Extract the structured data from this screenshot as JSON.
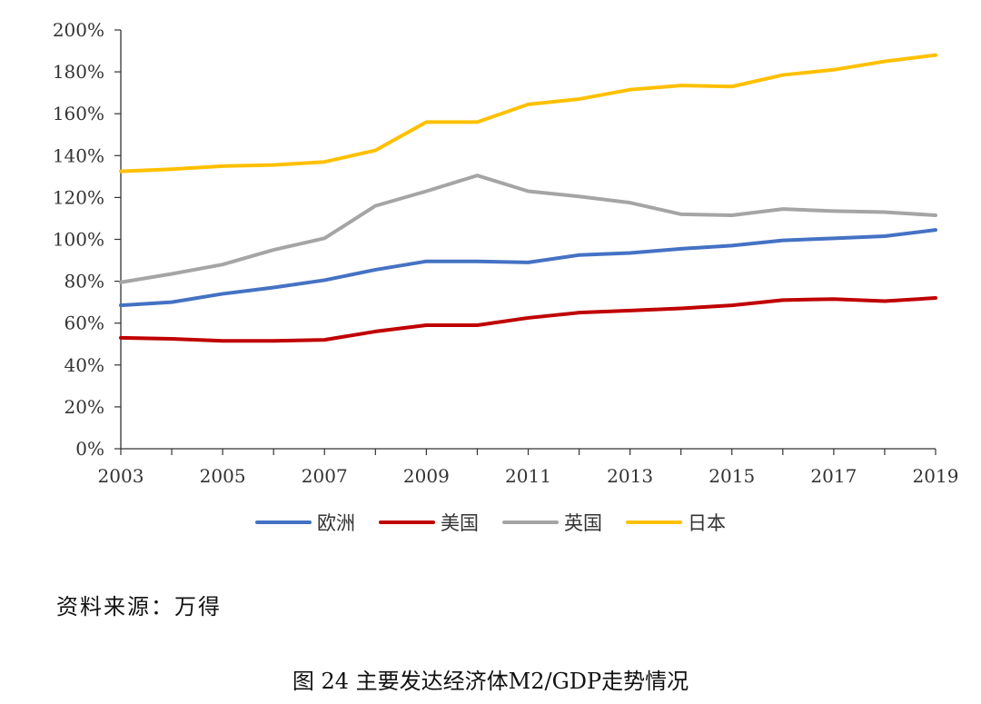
{
  "chart_data": {
    "type": "line",
    "title": "",
    "xlabel": "",
    "ylabel": "",
    "x": [
      2003,
      2004,
      2005,
      2006,
      2007,
      2008,
      2009,
      2010,
      2011,
      2012,
      2013,
      2014,
      2015,
      2016,
      2017,
      2018,
      2019
    ],
    "x_tick_labels": [
      "2003",
      "2005",
      "2007",
      "2009",
      "2011",
      "2013",
      "2015",
      "2017",
      "2019"
    ],
    "y_tick_labels": [
      "0%",
      "20%",
      "40%",
      "60%",
      "80%",
      "100%",
      "120%",
      "140%",
      "160%",
      "180%",
      "200%"
    ],
    "ylim": [
      0,
      200
    ],
    "grid": false,
    "legend_position": "bottom",
    "series": [
      {
        "name": "欧洲",
        "color": "#4472C4",
        "values": [
          68.5,
          70,
          74,
          77,
          80.5,
          85.5,
          89.5,
          89.5,
          89,
          92.5,
          93.5,
          95.5,
          97,
          99.5,
          100.5,
          101.5,
          104.5
        ]
      },
      {
        "name": "美国",
        "color": "#C00000",
        "values": [
          53,
          52.5,
          51.5,
          51.5,
          52,
          56,
          59,
          59,
          62.5,
          65,
          66,
          67,
          68.5,
          71,
          71.5,
          70.5,
          72
        ]
      },
      {
        "name": "英国",
        "color": "#A5A5A5",
        "values": [
          79.5,
          83.5,
          88,
          95,
          100.5,
          116,
          123,
          130.5,
          123,
          120.5,
          117.5,
          112,
          111.5,
          114.5,
          113.5,
          113,
          111.5
        ]
      },
      {
        "name": "日本",
        "color": "#FFC000",
        "values": [
          132.5,
          133.5,
          135,
          135.5,
          137,
          142.5,
          156,
          156,
          164.5,
          167,
          171.5,
          173.5,
          173,
          178.5,
          181,
          185,
          188
        ]
      }
    ]
  },
  "source_text": "资料来源：万得",
  "caption": "图 24  主要发达经济体M2/GDP走势情况"
}
